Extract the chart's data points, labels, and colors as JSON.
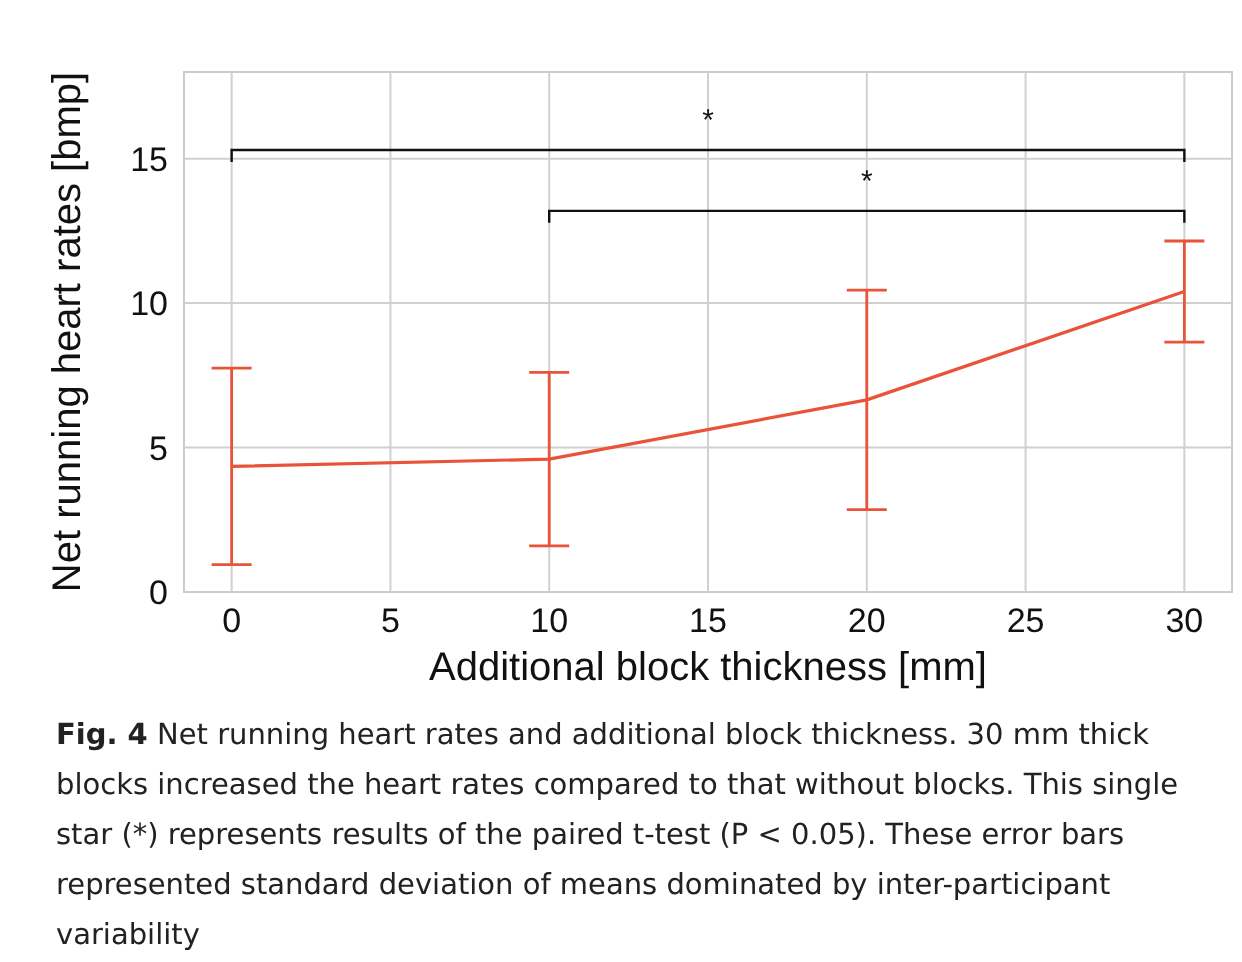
{
  "chart_data": {
    "type": "line",
    "title": "Fig. 4",
    "xlabel": "Additional block thickness [mm]",
    "ylabel": "Net running heart rates [bmp]",
    "x": [
      0,
      10,
      20,
      30
    ],
    "series": [
      {
        "color": "#e8533a",
        "values": [
          4.35,
          4.6,
          6.65,
          10.4
        ],
        "errors": [
          3.4,
          3.0,
          3.8,
          1.75
        ]
      }
    ],
    "xlim": [
      -1.5,
      31.5
    ],
    "xticks": [
      0,
      5,
      10,
      15,
      20,
      25,
      30
    ],
    "ylim": [
      0,
      18
    ],
    "yticks": [
      0,
      5,
      10,
      15
    ],
    "grid": true,
    "marker": "none",
    "line_style": "solid",
    "legend": false,
    "annotations": [
      "*",
      "*",
      "Net running heart rates and additional block thickness. 30 mm thick blocks increased the heart rates compared to that without blocks. This single star (*) represents results of the paired t-test (P < 0.05). These error bars represented standard deviation of means dominated by inter-participant variability"
    ]
  }
}
